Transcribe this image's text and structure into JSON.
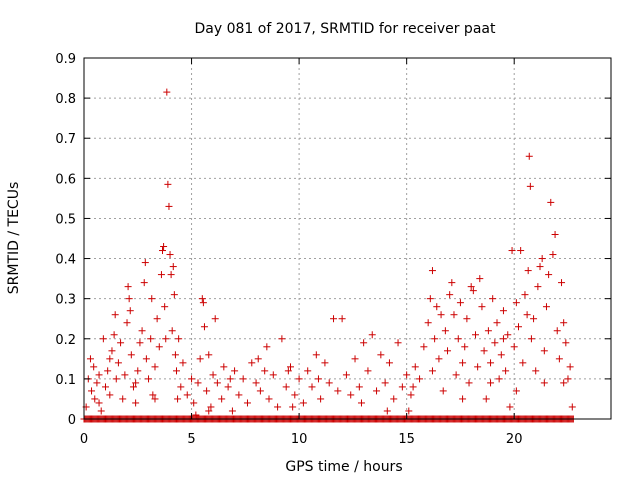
{
  "chart_data": {
    "type": "scatter",
    "title": "Day 081 of 2017, SRMTID for receiver paat",
    "xlabel": "GPS time / hours",
    "ylabel": "SRMTID / TECUs",
    "xlim": [
      0,
      24.5
    ],
    "ylim": [
      0,
      0.9
    ],
    "xticks": [
      0,
      5,
      10,
      15,
      20
    ],
    "xtick_labels": [
      "0",
      "5",
      "10",
      "15",
      "20"
    ],
    "yticks": [
      0,
      0.1,
      0.2,
      0.3,
      0.4,
      0.5,
      0.6,
      0.7,
      0.8,
      0.9
    ],
    "ytick_labels": [
      "0",
      "0.1",
      "0.2",
      "0.3",
      "0.4",
      "0.5",
      "0.6",
      "0.7",
      "0.8",
      "0.9"
    ],
    "grid": true,
    "marker": "plus",
    "color": "#cc0000",
    "series": [
      {
        "name": "SRMTID",
        "points": [
          [
            0.1,
            0.03
          ],
          [
            0.2,
            0.1
          ],
          [
            0.3,
            0.15
          ],
          [
            0.35,
            0.07
          ],
          [
            0.45,
            0.13
          ],
          [
            0.5,
            0.05
          ],
          [
            0.6,
            0.09
          ],
          [
            0.7,
            0.11
          ],
          [
            0.8,
            0.02
          ],
          [
            0.9,
            0.2
          ],
          [
            1.0,
            0.08
          ],
          [
            1.1,
            0.12
          ],
          [
            1.2,
            0.06
          ],
          [
            1.3,
            0.17
          ],
          [
            1.4,
            0.21
          ],
          [
            1.45,
            0.26
          ],
          [
            1.5,
            0.1
          ],
          [
            1.6,
            0.14
          ],
          [
            1.7,
            0.19
          ],
          [
            1.8,
            0.05
          ],
          [
            1.9,
            0.11
          ],
          [
            2.0,
            0.24
          ],
          [
            2.05,
            0.33
          ],
          [
            2.1,
            0.3
          ],
          [
            2.15,
            0.27
          ],
          [
            2.2,
            0.16
          ],
          [
            2.3,
            0.08
          ],
          [
            2.4,
            0.04
          ],
          [
            2.5,
            0.12
          ],
          [
            2.6,
            0.19
          ],
          [
            2.7,
            0.22
          ],
          [
            2.8,
            0.34
          ],
          [
            2.85,
            0.39
          ],
          [
            2.9,
            0.15
          ],
          [
            3.0,
            0.1
          ],
          [
            3.1,
            0.2
          ],
          [
            3.15,
            0.3
          ],
          [
            3.2,
            0.06
          ],
          [
            3.3,
            0.13
          ],
          [
            3.4,
            0.25
          ],
          [
            3.5,
            0.18
          ],
          [
            3.6,
            0.36
          ],
          [
            3.65,
            0.42
          ],
          [
            3.7,
            0.43
          ],
          [
            3.75,
            0.28
          ],
          [
            3.8,
            0.2
          ],
          [
            3.85,
            0.815
          ],
          [
            3.9,
            0.585
          ],
          [
            3.95,
            0.53
          ],
          [
            4.0,
            0.41
          ],
          [
            4.05,
            0.36
          ],
          [
            4.1,
            0.22
          ],
          [
            4.15,
            0.38
          ],
          [
            4.2,
            0.31
          ],
          [
            4.25,
            0.16
          ],
          [
            4.3,
            0.12
          ],
          [
            4.35,
            0.05
          ],
          [
            4.4,
            0.2
          ],
          [
            4.5,
            0.08
          ],
          [
            4.6,
            0.14
          ],
          [
            4.8,
            0.06
          ],
          [
            5.0,
            0.1
          ],
          [
            5.1,
            0.04
          ],
          [
            5.2,
            0.01
          ],
          [
            5.3,
            0.09
          ],
          [
            5.4,
            0.15
          ],
          [
            5.5,
            0.3
          ],
          [
            5.55,
            0.29
          ],
          [
            5.6,
            0.23
          ],
          [
            5.7,
            0.07
          ],
          [
            5.8,
            0.16
          ],
          [
            5.9,
            0.03
          ],
          [
            6.0,
            0.11
          ],
          [
            6.1,
            0.25
          ],
          [
            6.2,
            0.09
          ],
          [
            6.4,
            0.05
          ],
          [
            6.5,
            0.13
          ],
          [
            6.7,
            0.08
          ],
          [
            6.9,
            0.02
          ],
          [
            7.0,
            0.12
          ],
          [
            7.2,
            0.06
          ],
          [
            7.4,
            0.1
          ],
          [
            7.6,
            0.04
          ],
          [
            7.8,
            0.14
          ],
          [
            8.0,
            0.09
          ],
          [
            8.2,
            0.07
          ],
          [
            8.4,
            0.12
          ],
          [
            8.5,
            0.18
          ],
          [
            8.6,
            0.05
          ],
          [
            8.8,
            0.11
          ],
          [
            9.0,
            0.03
          ],
          [
            9.2,
            0.2
          ],
          [
            9.4,
            0.08
          ],
          [
            9.6,
            0.13
          ],
          [
            9.7,
            0.03
          ],
          [
            9.8,
            0.06
          ],
          [
            10.0,
            0.1
          ],
          [
            10.2,
            0.04
          ],
          [
            10.4,
            0.12
          ],
          [
            10.6,
            0.08
          ],
          [
            10.8,
            0.16
          ],
          [
            11.0,
            0.05
          ],
          [
            11.2,
            0.14
          ],
          [
            11.4,
            0.09
          ],
          [
            11.6,
            0.25
          ],
          [
            11.8,
            0.07
          ],
          [
            12.0,
            0.25
          ],
          [
            12.2,
            0.11
          ],
          [
            12.4,
            0.06
          ],
          [
            12.6,
            0.15
          ],
          [
            12.8,
            0.08
          ],
          [
            13.0,
            0.19
          ],
          [
            13.2,
            0.12
          ],
          [
            13.4,
            0.21
          ],
          [
            13.6,
            0.07
          ],
          [
            13.8,
            0.16
          ],
          [
            14.0,
            0.09
          ],
          [
            14.2,
            0.14
          ],
          [
            14.4,
            0.05
          ],
          [
            14.6,
            0.19
          ],
          [
            14.8,
            0.08
          ],
          [
            15.0,
            0.11
          ],
          [
            15.1,
            0.02
          ],
          [
            15.2,
            0.06
          ],
          [
            15.4,
            0.13
          ],
          [
            15.6,
            0.1
          ],
          [
            15.8,
            0.18
          ],
          [
            16.0,
            0.24
          ],
          [
            16.1,
            0.3
          ],
          [
            16.2,
            0.37
          ],
          [
            16.3,
            0.2
          ],
          [
            16.4,
            0.28
          ],
          [
            16.5,
            0.15
          ],
          [
            16.6,
            0.26
          ],
          [
            16.7,
            0.07
          ],
          [
            16.8,
            0.22
          ],
          [
            16.9,
            0.17
          ],
          [
            17.0,
            0.31
          ],
          [
            17.1,
            0.34
          ],
          [
            17.2,
            0.26
          ],
          [
            17.3,
            0.11
          ],
          [
            17.4,
            0.2
          ],
          [
            17.5,
            0.29
          ],
          [
            17.6,
            0.14
          ],
          [
            17.7,
            0.18
          ],
          [
            17.8,
            0.25
          ],
          [
            17.9,
            0.09
          ],
          [
            18.0,
            0.33
          ],
          [
            18.1,
            0.32
          ],
          [
            18.2,
            0.21
          ],
          [
            18.3,
            0.13
          ],
          [
            18.4,
            0.35
          ],
          [
            18.5,
            0.28
          ],
          [
            18.6,
            0.17
          ],
          [
            18.7,
            0.05
          ],
          [
            18.8,
            0.22
          ],
          [
            18.9,
            0.14
          ],
          [
            19.0,
            0.3
          ],
          [
            19.1,
            0.19
          ],
          [
            19.2,
            0.24
          ],
          [
            19.3,
            0.1
          ],
          [
            19.4,
            0.16
          ],
          [
            19.5,
            0.27
          ],
          [
            19.6,
            0.12
          ],
          [
            19.7,
            0.21
          ],
          [
            19.8,
            0.03
          ],
          [
            19.9,
            0.42
          ],
          [
            20.0,
            0.18
          ],
          [
            20.1,
            0.29
          ],
          [
            20.2,
            0.23
          ],
          [
            20.3,
            0.42
          ],
          [
            20.4,
            0.14
          ],
          [
            20.5,
            0.31
          ],
          [
            20.6,
            0.26
          ],
          [
            20.65,
            0.37
          ],
          [
            20.7,
            0.655
          ],
          [
            20.75,
            0.58
          ],
          [
            20.8,
            0.2
          ],
          [
            20.9,
            0.25
          ],
          [
            21.0,
            0.12
          ],
          [
            21.1,
            0.33
          ],
          [
            21.2,
            0.38
          ],
          [
            21.3,
            0.4
          ],
          [
            21.4,
            0.17
          ],
          [
            21.5,
            0.28
          ],
          [
            21.6,
            0.36
          ],
          [
            21.7,
            0.54
          ],
          [
            21.8,
            0.41
          ],
          [
            21.9,
            0.46
          ],
          [
            22.0,
            0.22
          ],
          [
            22.1,
            0.15
          ],
          [
            22.2,
            0.34
          ],
          [
            22.3,
            0.24
          ],
          [
            22.4,
            0.19
          ],
          [
            22.5,
            0.1
          ],
          [
            22.6,
            0.13
          ],
          [
            22.7,
            0.03
          ],
          [
            0.7,
            0.04
          ],
          [
            1.2,
            0.15
          ],
          [
            2.4,
            0.09
          ],
          [
            3.3,
            0.05
          ],
          [
            5.8,
            0.02
          ],
          [
            6.8,
            0.1
          ],
          [
            8.1,
            0.15
          ],
          [
            9.5,
            0.12
          ],
          [
            10.9,
            0.1
          ],
          [
            12.9,
            0.04
          ],
          [
            14.1,
            0.02
          ],
          [
            15.3,
            0.08
          ],
          [
            16.2,
            0.12
          ],
          [
            17.6,
            0.05
          ],
          [
            18.9,
            0.09
          ],
          [
            19.5,
            0.2
          ],
          [
            20.1,
            0.07
          ],
          [
            21.4,
            0.09
          ],
          [
            22.3,
            0.09
          ]
        ],
        "baseline_range": [
          0.0,
          22.75
        ],
        "baseline_value": 0
      }
    ]
  }
}
